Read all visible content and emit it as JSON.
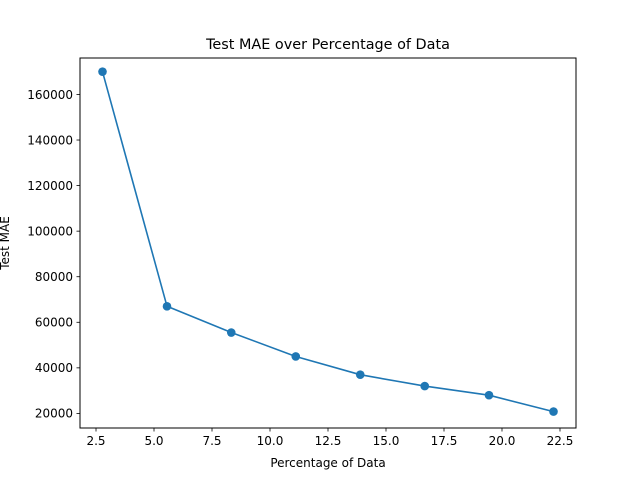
{
  "chart_data": {
    "type": "line",
    "title": "Test MAE over Percentage of Data",
    "xlabel": "Percentage of Data",
    "ylabel": "Test MAE",
    "xlim": [
      1.81,
      23.19
    ],
    "ylim": [
      13600,
      176000
    ],
    "x_ticks": [
      2.5,
      5.0,
      7.5,
      10.0,
      12.5,
      15.0,
      17.5,
      20.0,
      22.5
    ],
    "x_tick_labels": [
      "2.5",
      "5.0",
      "7.5",
      "10.0",
      "12.5",
      "15.0",
      "17.5",
      "20.0",
      "22.5"
    ],
    "y_ticks": [
      20000,
      40000,
      60000,
      80000,
      100000,
      120000,
      140000,
      160000
    ],
    "y_tick_labels": [
      "20000",
      "40000",
      "60000",
      "80000",
      "100000",
      "120000",
      "140000",
      "160000"
    ],
    "grid": false,
    "legend": "none",
    "series": [
      {
        "color": "#1f77b4",
        "marker": "circle",
        "x": [
          2.78,
          5.56,
          8.33,
          11.11,
          13.89,
          16.67,
          19.44,
          22.22
        ],
        "y": [
          170000,
          67000,
          55500,
          45000,
          37000,
          32000,
          28000,
          20800
        ]
      }
    ]
  }
}
